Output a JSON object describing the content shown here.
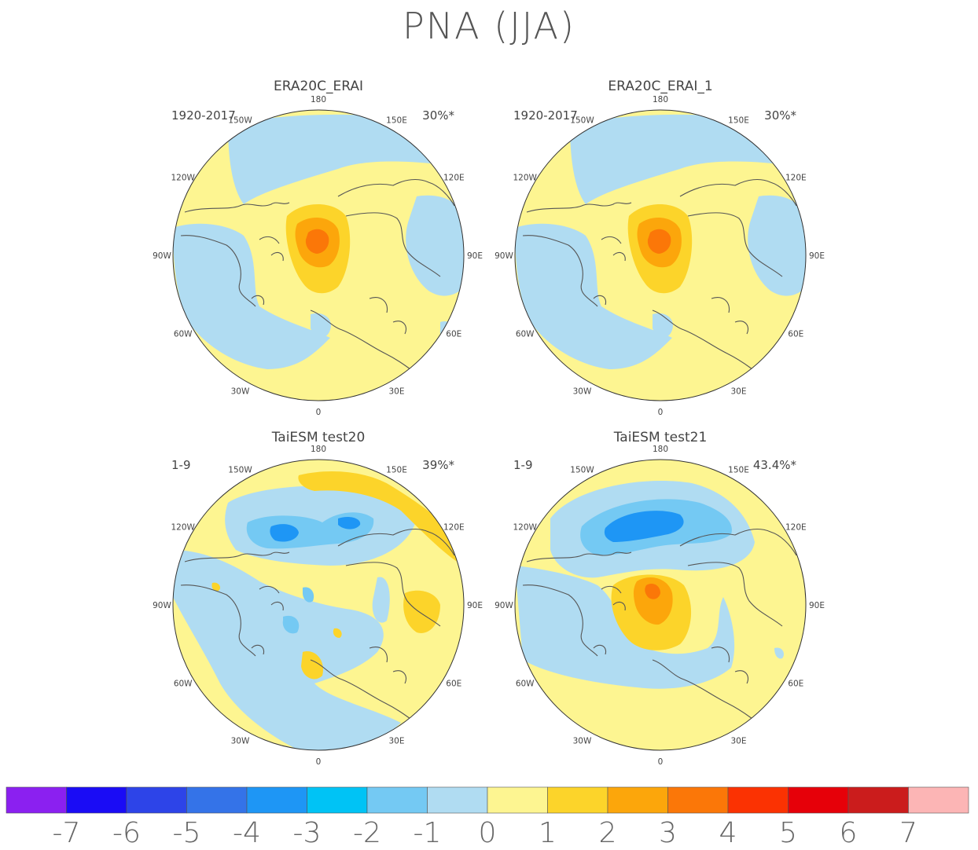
{
  "title": "PNA (JJA)",
  "panels": [
    {
      "title": "ERA20C_ERAI",
      "period": "1920-2017",
      "variance": "30%*"
    },
    {
      "title": "ERA20C_ERAI_1",
      "period": "1920-2017",
      "variance": "30%*"
    },
    {
      "title": "TaiESM test20",
      "period": "1-9",
      "variance": "39%*"
    },
    {
      "title": "TaiESM test21",
      "period": "1-9",
      "variance": "43.4%*"
    }
  ],
  "longitude_labels": [
    "180",
    "150E",
    "120E",
    "90E",
    "60E",
    "30E",
    "0",
    "30W",
    "60W",
    "90W",
    "120W",
    "150W"
  ],
  "colorbar": {
    "labels": [
      "-7",
      "-6",
      "-5",
      "-4",
      "-3",
      "-2",
      "-1",
      "0",
      "1",
      "2",
      "3",
      "4",
      "5",
      "6",
      "7"
    ],
    "colors": [
      "#8b20f0",
      "#1a0cf5",
      "#2d44e8",
      "#3473e8",
      "#1e96f5",
      "#00c3f5",
      "#74c9f3",
      "#b0dcf2",
      "#fdf591",
      "#fcd42a",
      "#fca60b",
      "#fb7708",
      "#fb3202",
      "#e60009",
      "#cb1c1c",
      "#fcb5b5"
    ]
  },
  "map_colors": {
    "neg1": "#b0dcf2",
    "neg2": "#74c9f3",
    "neg3": "#1e96f5",
    "zero": "#fdf591",
    "pos1": "#fcd42a",
    "pos2": "#fca60b",
    "pos3": "#fb7708",
    "coast": "#555555"
  }
}
